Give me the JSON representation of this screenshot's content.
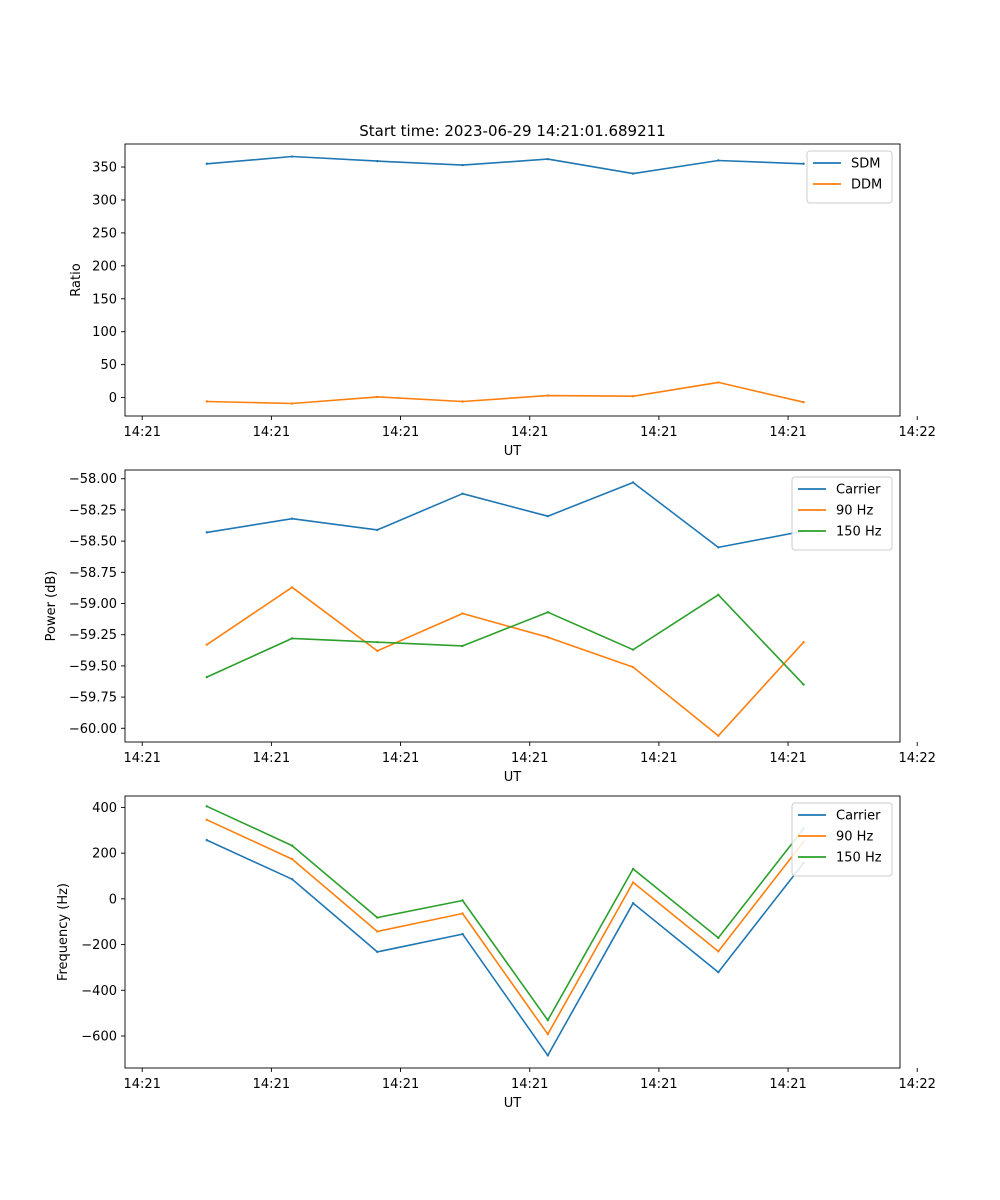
{
  "title": "Start time: 2023-06-29 14:21:01.689211",
  "chart_data": [
    {
      "type": "line",
      "title": "Start time: 2023-06-29 14:21:01.689211",
      "xlabel": "UT",
      "ylabel": "Ratio",
      "xlim": [
        0,
        9.0
      ],
      "ylim": [
        -28,
        385
      ],
      "xticks": [
        0.2,
        1.7,
        3.2,
        4.7,
        6.2,
        7.7,
        9.2
      ],
      "xtick_labels": [
        "14:21",
        "14:21",
        "14:21",
        "14:21",
        "14:21",
        "14:21",
        "14:22"
      ],
      "yticks": [
        0,
        50,
        100,
        150,
        200,
        250,
        300,
        350
      ],
      "ytick_labels": [
        "0",
        "50",
        "100",
        "150",
        "200",
        "250",
        "300",
        "350"
      ],
      "legend_position": "top-right",
      "x": [
        0.95,
        1.94,
        2.93,
        3.92,
        4.91,
        5.9,
        6.89,
        7.88
      ],
      "series": [
        {
          "name": "SDM",
          "color": "#1f77b4",
          "values": [
            355,
            366,
            359,
            353,
            362,
            340,
            360,
            355
          ]
        },
        {
          "name": "DDM",
          "color": "#ff7f0e",
          "values": [
            -6,
            -9,
            1,
            -6,
            3,
            2,
            23,
            -7
          ]
        }
      ]
    },
    {
      "type": "line",
      "xlabel": "UT",
      "ylabel": "Power (dB)",
      "xlim": [
        0,
        9.0
      ],
      "ylim": [
        -60.11,
        -57.93
      ],
      "xticks": [
        0.2,
        1.7,
        3.2,
        4.7,
        6.2,
        7.7,
        9.2
      ],
      "xtick_labels": [
        "14:21",
        "14:21",
        "14:21",
        "14:21",
        "14:21",
        "14:21",
        "14:22"
      ],
      "yticks": [
        -60.0,
        -59.75,
        -59.5,
        -59.25,
        -59.0,
        -58.75,
        -58.5,
        -58.25,
        -58.0
      ],
      "ytick_labels": [
        "−60.00",
        "−59.75",
        "−59.50",
        "−59.25",
        "−59.00",
        "−58.75",
        "−58.50",
        "−58.25",
        "−58.00"
      ],
      "legend_position": "top-right",
      "x": [
        0.95,
        1.94,
        2.93,
        3.92,
        4.91,
        5.9,
        6.89,
        7.88
      ],
      "series": [
        {
          "name": "Carrier",
          "color": "#1f77b4",
          "values": [
            -58.43,
            -58.32,
            -58.41,
            -58.12,
            -58.3,
            -58.03,
            -58.55,
            -58.42
          ]
        },
        {
          "name": "90 Hz",
          "color": "#ff7f0e",
          "values": [
            -59.33,
            -58.87,
            -59.38,
            -59.08,
            -59.27,
            -59.51,
            -60.06,
            -59.31
          ]
        },
        {
          "name": "150 Hz",
          "color": "#2ca02c",
          "values": [
            -59.59,
            -59.28,
            -59.31,
            -59.34,
            -59.07,
            -59.37,
            -58.93,
            -59.65
          ]
        }
      ]
    },
    {
      "type": "line",
      "xlabel": "UT",
      "ylabel": "Frequency (Hz)",
      "xlim": [
        0,
        9.0
      ],
      "ylim": [
        -740,
        450
      ],
      "xticks": [
        0.2,
        1.7,
        3.2,
        4.7,
        6.2,
        7.7,
        9.2
      ],
      "xtick_labels": [
        "14:21",
        "14:21",
        "14:21",
        "14:21",
        "14:21",
        "14:21",
        "14:22"
      ],
      "yticks": [
        -600,
        -400,
        -200,
        0,
        200,
        400
      ],
      "ytick_labels": [
        "−600",
        "−400",
        "−200",
        "0",
        "200",
        "400"
      ],
      "legend_position": "top-right",
      "x": [
        0.95,
        1.94,
        2.93,
        3.92,
        4.91,
        5.9,
        6.89,
        7.88
      ],
      "series": [
        {
          "name": "Carrier",
          "color": "#1f77b4",
          "values": [
            257,
            86,
            -232,
            -154,
            -685,
            -19,
            -321,
            157
          ]
        },
        {
          "name": "90 Hz",
          "color": "#ff7f0e",
          "values": [
            346,
            174,
            -143,
            -64,
            -592,
            72,
            -230,
            250
          ]
        },
        {
          "name": "150 Hz",
          "color": "#2ca02c",
          "values": [
            405,
            233,
            -82,
            -7,
            -531,
            131,
            -171,
            307
          ]
        }
      ]
    }
  ]
}
